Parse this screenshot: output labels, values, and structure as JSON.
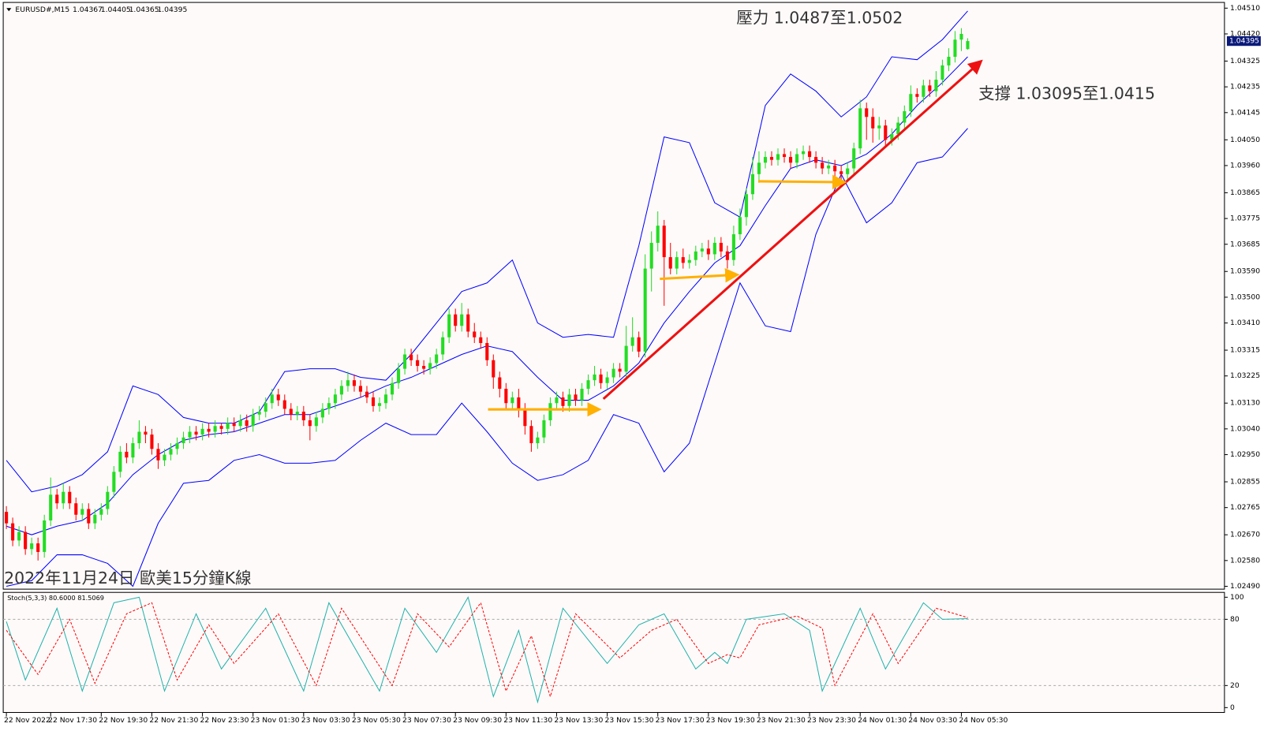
{
  "chart_data": [
    {
      "type": "candlestick",
      "symbol": "EURUSD#,M15",
      "annotations": [
        "壓力 1.0487至1.0502",
        "支撐 1.03095至1.0415",
        "2022年11月24日 歐美15分鐘K線"
      ],
      "up_color": "#22dd22",
      "down_color": "#ff0000",
      "band_color": "#0000ff",
      "background": "#fffafa",
      "xlim": [
        -0.5,
        192.6
      ],
      "ylim": [
        1.0248,
        1.0453
      ],
      "xticks": [
        {
          "value": 0,
          "label": "22 Nov 2022"
        },
        {
          "value": 7,
          "label": "22 Nov 17:30"
        },
        {
          "value": 15,
          "label": "22 Nov 19:30"
        },
        {
          "value": 23,
          "label": "22 Nov 21:30"
        },
        {
          "value": 31,
          "label": "22 Nov 23:30"
        },
        {
          "value": 39,
          "label": "23 Nov 01:30"
        },
        {
          "value": 47,
          "label": "23 Nov 03:30"
        },
        {
          "value": 55,
          "label": "23 Nov 05:30"
        },
        {
          "value": 63,
          "label": "23 Nov 07:30"
        },
        {
          "value": 71,
          "label": "23 Nov 09:30"
        },
        {
          "value": 79,
          "label": "23 Nov 11:30"
        },
        {
          "value": 87,
          "label": "23 Nov 13:30"
        },
        {
          "value": 95,
          "label": "23 Nov 15:30"
        },
        {
          "value": 103,
          "label": "23 Nov 17:30"
        },
        {
          "value": 111,
          "label": "23 Nov 19:30"
        },
        {
          "value": 119,
          "label": "23 Nov 21:30"
        },
        {
          "value": 127,
          "label": "23 Nov 23:30"
        },
        {
          "value": 135,
          "label": "24 Nov 01:30"
        },
        {
          "value": 143,
          "label": "24 Nov 03:30"
        },
        {
          "value": 151,
          "label": "24 Nov 05:30"
        }
      ],
      "yticks": [
        {
          "value": 1.0451,
          "label": "1.04510"
        },
        {
          "value": 1.0442,
          "label": "1.04420"
        },
        {
          "value": 1.04325,
          "label": "1.04325"
        },
        {
          "value": 1.04235,
          "label": "1.04235"
        },
        {
          "value": 1.04145,
          "label": "1.04145"
        },
        {
          "value": 1.0405,
          "label": "1.04050"
        },
        {
          "value": 1.0396,
          "label": "1.03960"
        },
        {
          "value": 1.03865,
          "label": "1.03865"
        },
        {
          "value": 1.03775,
          "label": "1.03775"
        },
        {
          "value": 1.03685,
          "label": "1.03685"
        },
        {
          "value": 1.0359,
          "label": "1.03590"
        },
        {
          "value": 1.035,
          "label": "1.03500"
        },
        {
          "value": 1.0341,
          "label": "1.03410"
        },
        {
          "value": 1.03315,
          "label": "1.03315"
        },
        {
          "value": 1.03225,
          "label": "1.03225"
        },
        {
          "value": 1.0313,
          "label": "1.03130"
        },
        {
          "value": 1.0304,
          "label": "1.03040"
        },
        {
          "value": 1.0295,
          "label": "1.02950"
        },
        {
          "value": 1.02855,
          "label": "1.02855"
        },
        {
          "value": 1.02765,
          "label": "1.02765"
        },
        {
          "value": 1.0267,
          "label": "1.02670"
        },
        {
          "value": 1.0258,
          "label": "1.02580"
        },
        {
          "value": 1.0249,
          "label": "1.02490"
        }
      ],
      "open": [
        1.0275,
        1.0271,
        1.0265,
        1.0268,
        1.0262,
        1.0264,
        1.0261,
        1.0272,
        1.0281,
        1.0278,
        1.0282,
        1.0278,
        1.0274,
        1.0276,
        1.0271,
        1.0274,
        1.0276,
        1.0282,
        1.0289,
        1.0296,
        1.0294,
        1.0299,
        1.0303,
        1.0302,
        1.0297,
        1.0293,
        1.0295,
        1.0297,
        1.0299,
        1.0301,
        1.0303,
        1.0302,
        1.0304,
        1.0303,
        1.0305,
        1.0304,
        1.0306,
        1.0305,
        1.0307,
        1.0305,
        1.0309,
        1.031,
        1.0313,
        1.0316,
        1.0314,
        1.0311,
        1.0309,
        1.031,
        1.0307,
        1.0305,
        1.0308,
        1.0311,
        1.0313,
        1.0316,
        1.0319,
        1.0321,
        1.0319,
        1.0317,
        1.0315,
        1.0312,
        1.0313,
        1.0316,
        1.032,
        1.0325,
        1.033,
        1.0328,
        1.0326,
        1.0325,
        1.0327,
        1.033,
        1.0336,
        1.0344,
        1.034,
        1.0344,
        1.0338,
        1.0336,
        1.0334,
        1.0328,
        1.0322,
        1.0318,
        1.0313,
        1.0315,
        1.0311,
        1.0305,
        1.0299,
        1.0301,
        1.0307,
        1.0313,
        1.0315,
        1.0312,
        1.0316,
        1.0314,
        1.0318,
        1.0321,
        1.0323,
        1.032,
        1.0322,
        1.0325,
        1.0324,
        1.0333,
        1.0336,
        1.0331,
        1.036,
        1.0369,
        1.0375,
        1.0364,
        1.036,
        1.0364,
        1.0362,
        1.0363,
        1.0366,
        1.0367,
        1.0365,
        1.0369,
        1.0366,
        1.0363,
        1.0372,
        1.0378,
        1.0386,
        1.0393,
        1.0397,
        1.0399,
        1.0398,
        1.04,
        1.0399,
        1.0397,
        1.04,
        1.0401,
        1.0399,
        1.0397,
        1.0395,
        1.0396,
        1.0394,
        1.0393,
        1.0395,
        1.0402,
        1.0416,
        1.0413,
        1.0409,
        1.041,
        1.0405,
        1.0407,
        1.0411,
        1.0415,
        1.0421,
        1.042,
        1.0424,
        1.0422,
        1.0426,
        1.0431,
        1.0434,
        1.044,
        1.04367
      ],
      "high": [
        1.0277,
        1.0273,
        1.027,
        1.027,
        1.0266,
        1.0266,
        1.0274,
        1.0287,
        1.0283,
        1.0285,
        1.0284,
        1.028,
        1.0278,
        1.0278,
        1.0276,
        1.0278,
        1.0284,
        1.0291,
        1.0298,
        1.0299,
        1.0301,
        1.0307,
        1.0305,
        1.0304,
        1.0299,
        1.0297,
        1.0299,
        1.0301,
        1.0303,
        1.0305,
        1.0305,
        1.0306,
        1.0306,
        1.0307,
        1.0306,
        1.0308,
        1.0308,
        1.0309,
        1.0309,
        1.0311,
        1.0312,
        1.0315,
        1.0318,
        1.0318,
        1.0316,
        1.0313,
        1.0312,
        1.0312,
        1.0309,
        1.031,
        1.0313,
        1.0315,
        1.0318,
        1.0321,
        1.0324,
        1.0323,
        1.0321,
        1.0319,
        1.0317,
        1.0315,
        1.0318,
        1.0322,
        1.0327,
        1.0332,
        1.0332,
        1.033,
        1.0328,
        1.0329,
        1.0332,
        1.0338,
        1.0346,
        1.0346,
        1.0348,
        1.0346,
        1.0341,
        1.0338,
        1.0336,
        1.033,
        1.0324,
        1.032,
        1.0317,
        1.0318,
        1.0313,
        1.0307,
        1.0303,
        1.0309,
        1.0315,
        1.0317,
        1.0317,
        1.0318,
        1.0318,
        1.032,
        1.0323,
        1.0326,
        1.0325,
        1.0324,
        1.0327,
        1.0327,
        1.034,
        1.0343,
        1.0338,
        1.0365,
        1.0373,
        1.038,
        1.0377,
        1.0369,
        1.0366,
        1.0367,
        1.0365,
        1.0368,
        1.0369,
        1.037,
        1.0371,
        1.0371,
        1.0368,
        1.0375,
        1.0381,
        1.0388,
        1.0399,
        1.0401,
        1.0401,
        1.0401,
        1.0402,
        1.0402,
        1.0401,
        1.0402,
        1.0403,
        1.0403,
        1.0401,
        1.0399,
        1.0398,
        1.0398,
        1.0396,
        1.0397,
        1.0404,
        1.0419,
        1.0418,
        1.0416,
        1.0413,
        1.0412,
        1.0409,
        1.0413,
        1.0417,
        1.0424,
        1.0423,
        1.0426,
        1.0426,
        1.0429,
        1.0433,
        1.0437,
        1.0443,
        1.0444,
        1.04405
      ],
      "low": [
        1.0269,
        1.0263,
        1.0263,
        1.026,
        1.026,
        1.0258,
        1.0259,
        1.027,
        1.0276,
        1.0276,
        1.0276,
        1.0272,
        1.0272,
        1.0269,
        1.0269,
        1.0272,
        1.0274,
        1.028,
        1.0287,
        1.0292,
        1.0292,
        1.0297,
        1.0299,
        1.0295,
        1.029,
        1.0291,
        1.0293,
        1.0295,
        1.0297,
        1.0299,
        1.03,
        1.03,
        1.0301,
        1.0301,
        1.0302,
        1.0302,
        1.0303,
        1.0303,
        1.0303,
        1.0303,
        1.0307,
        1.0308,
        1.0311,
        1.0312,
        1.0309,
        1.0307,
        1.0307,
        1.0305,
        1.03,
        1.0303,
        1.0306,
        1.0309,
        1.0311,
        1.0314,
        1.0317,
        1.0317,
        1.0315,
        1.0313,
        1.031,
        1.031,
        1.0311,
        1.0314,
        1.0318,
        1.0323,
        1.0326,
        1.0324,
        1.0323,
        1.0323,
        1.0325,
        1.0328,
        1.0334,
        1.0338,
        1.0338,
        1.0336,
        1.0334,
        1.0332,
        1.0326,
        1.0318,
        1.0315,
        1.0311,
        1.0311,
        1.0308,
        1.0302,
        1.0296,
        1.0297,
        1.0299,
        1.0305,
        1.0311,
        1.031,
        1.031,
        1.0312,
        1.0312,
        1.0316,
        1.0319,
        1.0318,
        1.0318,
        1.032,
        1.0322,
        1.0322,
        1.0331,
        1.0329,
        1.0329,
        1.0352,
        1.0366,
        1.0347,
        1.0358,
        1.0358,
        1.036,
        1.036,
        1.0361,
        1.0364,
        1.0363,
        1.0363,
        1.0364,
        1.036,
        1.0361,
        1.037,
        1.0375,
        1.0384,
        1.039,
        1.0395,
        1.0396,
        1.0396,
        1.0397,
        1.0395,
        1.0395,
        1.0398,
        1.0397,
        1.0395,
        1.0393,
        1.0393,
        1.0392,
        1.0391,
        1.0391,
        1.0393,
        1.04,
        1.0405,
        1.0404,
        1.0405,
        1.0403,
        1.0403,
        1.0405,
        1.0409,
        1.0413,
        1.0418,
        1.0418,
        1.042,
        1.042,
        1.0424,
        1.0429,
        1.0432,
        1.0436,
        1.04365
      ],
      "close": [
        1.0271,
        1.0265,
        1.0268,
        1.0262,
        1.0264,
        1.0261,
        1.0272,
        1.0281,
        1.0278,
        1.0282,
        1.0278,
        1.0274,
        1.0276,
        1.0271,
        1.0274,
        1.0276,
        1.0282,
        1.0289,
        1.0296,
        1.0294,
        1.0299,
        1.0303,
        1.0302,
        1.0297,
        1.0293,
        1.0295,
        1.0297,
        1.0299,
        1.0301,
        1.0303,
        1.0302,
        1.0304,
        1.0303,
        1.0305,
        1.0304,
        1.0306,
        1.0305,
        1.0307,
        1.0305,
        1.0309,
        1.031,
        1.0313,
        1.0316,
        1.0314,
        1.0311,
        1.0309,
        1.031,
        1.0307,
        1.0305,
        1.0308,
        1.0311,
        1.0313,
        1.0316,
        1.0319,
        1.0321,
        1.0319,
        1.0317,
        1.0315,
        1.0312,
        1.0313,
        1.0316,
        1.032,
        1.0325,
        1.033,
        1.0328,
        1.0326,
        1.0325,
        1.0327,
        1.033,
        1.0336,
        1.0344,
        1.034,
        1.0344,
        1.0338,
        1.0336,
        1.0334,
        1.0328,
        1.0322,
        1.0318,
        1.0313,
        1.0315,
        1.0311,
        1.0305,
        1.0299,
        1.0301,
        1.0307,
        1.0313,
        1.0315,
        1.0312,
        1.0316,
        1.0314,
        1.0318,
        1.0321,
        1.0323,
        1.032,
        1.0322,
        1.0325,
        1.0324,
        1.0333,
        1.0336,
        1.0331,
        1.036,
        1.0369,
        1.0375,
        1.0364,
        1.036,
        1.0364,
        1.0362,
        1.0363,
        1.0366,
        1.0367,
        1.0365,
        1.0369,
        1.0366,
        1.0363,
        1.0372,
        1.0378,
        1.0386,
        1.0393,
        1.0397,
        1.0399,
        1.0398,
        1.04,
        1.0399,
        1.0397,
        1.04,
        1.0401,
        1.0399,
        1.0397,
        1.0395,
        1.0396,
        1.0394,
        1.0393,
        1.0395,
        1.0402,
        1.0416,
        1.0413,
        1.0409,
        1.041,
        1.0405,
        1.0407,
        1.0411,
        1.0415,
        1.0421,
        1.042,
        1.0424,
        1.0422,
        1.0426,
        1.0431,
        1.0434,
        1.044,
        1.0442,
        1.04395
      ],
      "bands": {
        "x": [
          0,
          4,
          8,
          12,
          16,
          20,
          24,
          28,
          32,
          36,
          40,
          44,
          48,
          52,
          56,
          60,
          64,
          68,
          72,
          76,
          80,
          84,
          88,
          92,
          96,
          100,
          104,
          108,
          112,
          116,
          120,
          124,
          128,
          132,
          136,
          140,
          144,
          148,
          152
        ],
        "upper": [
          1.0293,
          1.0282,
          1.0284,
          1.0288,
          1.0296,
          1.0319,
          1.0316,
          1.0308,
          1.0306,
          1.0306,
          1.031,
          1.0324,
          1.0325,
          1.0325,
          1.0322,
          1.0321,
          1.033,
          1.0341,
          1.0352,
          1.0355,
          1.0363,
          1.0341,
          1.0336,
          1.0337,
          1.0336,
          1.0368,
          1.0406,
          1.0404,
          1.0383,
          1.0378,
          1.0417,
          1.0428,
          1.0422,
          1.0413,
          1.042,
          1.0434,
          1.0433,
          1.044,
          1.045
        ],
        "middle": [
          1.027,
          1.0267,
          1.027,
          1.0272,
          1.0278,
          1.0288,
          1.0295,
          1.03,
          1.0302,
          1.0303,
          1.0306,
          1.0309,
          1.0309,
          1.0312,
          1.0315,
          1.0319,
          1.0322,
          1.0326,
          1.033,
          1.0333,
          1.0331,
          1.0322,
          1.0314,
          1.0314,
          1.0319,
          1.0327,
          1.0341,
          1.0352,
          1.0362,
          1.0368,
          1.0382,
          1.0395,
          1.0398,
          1.0396,
          1.04,
          1.0407,
          1.0417,
          1.0425,
          1.0434
        ],
        "lower": [
          1.0249,
          1.0251,
          1.026,
          1.026,
          1.0257,
          1.0249,
          1.0271,
          1.0285,
          1.0286,
          1.0293,
          1.0295,
          1.0292,
          1.0292,
          1.0293,
          1.03,
          1.0306,
          1.0302,
          1.0302,
          1.0313,
          1.0303,
          1.0292,
          1.0286,
          1.0288,
          1.0293,
          1.0309,
          1.0306,
          1.0289,
          1.0299,
          1.0327,
          1.0355,
          1.034,
          1.0338,
          1.0372,
          1.0393,
          1.0376,
          1.0383,
          1.0397,
          1.0399,
          1.0409
        ]
      }
    },
    {
      "type": "line",
      "title": "Stoch(5,3,3) 80.6000 81.5069",
      "xlim": [
        -0.5,
        192.6
      ],
      "ylim": [
        -4.4,
        104.4
      ],
      "yticks": [
        0,
        20,
        80,
        100
      ],
      "levels": [
        20,
        80
      ],
      "series": [
        {
          "color": "#20b2aa",
          "x": [
            0,
            3,
            8,
            12,
            17,
            21,
            25,
            30,
            34,
            41,
            47,
            51,
            59,
            63,
            68,
            73,
            77,
            81,
            84,
            88,
            95,
            100,
            104,
            109,
            112,
            114,
            117,
            123,
            127,
            129,
            135,
            139,
            145,
            148,
            152
          ],
          "values": [
            78,
            25,
            90,
            15,
            95,
            100,
            15,
            85,
            35,
            90,
            15,
            95,
            15,
            90,
            50,
            100,
            10,
            70,
            5,
            90,
            40,
            75,
            85,
            35,
            50,
            40,
            80,
            85,
            70,
            15,
            90,
            35,
            95,
            80,
            80.6
          ]
        },
        {
          "color": "#ff0000",
          "dashed": true,
          "x": [
            0,
            5,
            10,
            14,
            19,
            23,
            27,
            32,
            36,
            43,
            49,
            53,
            61,
            65,
            70,
            75,
            79,
            83,
            86,
            90,
            97,
            102,
            106,
            111,
            114,
            116,
            119,
            125,
            129,
            131,
            137,
            141,
            147,
            150,
            152
          ],
          "values": [
            70,
            30,
            80,
            22,
            85,
            95,
            25,
            75,
            40,
            85,
            20,
            90,
            20,
            85,
            55,
            95,
            15,
            65,
            10,
            85,
            45,
            70,
            80,
            40,
            48,
            45,
            75,
            83,
            72,
            20,
            85,
            40,
            90,
            85,
            81.5069
          ]
        }
      ]
    }
  ]
}
